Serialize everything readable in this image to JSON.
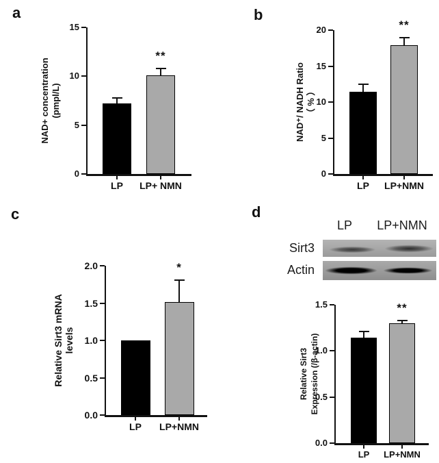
{
  "panel_labels": [
    "a",
    "b",
    "c",
    "d"
  ],
  "colors": {
    "bar_black": "#000000",
    "bar_gray": "#a9a9a9",
    "axis": "#111111"
  },
  "blot": {
    "columns": [
      "LP",
      "LP+NMN"
    ],
    "rows": [
      "Sirt3",
      "Actin"
    ]
  },
  "chart_data": [
    {
      "panel": "a",
      "type": "bar",
      "categories": [
        "LP",
        "LP+ NMN"
      ],
      "values": [
        7.2,
        10.1
      ],
      "errors": [
        0.55,
        0.7
      ],
      "significance": {
        "category": "LP+ NMN",
        "stars": "**"
      },
      "ylabel_lines": [
        "NAD+ concentration",
        "(pmpl/L)"
      ],
      "yticks": [
        "0",
        "5",
        "10",
        "15"
      ],
      "ylim": [
        0,
        15
      ],
      "bar_colors": [
        "#000000",
        "#a9a9a9"
      ],
      "grid": false,
      "legend": null
    },
    {
      "panel": "b",
      "type": "bar",
      "categories": [
        "LP",
        "LP+NMN"
      ],
      "values": [
        11.4,
        17.9
      ],
      "errors": [
        1.1,
        1.1
      ],
      "significance": {
        "category": "LP+NMN",
        "stars": "**"
      },
      "ylabel_lines": [
        "NAD⁺/ NADH Ratio",
        "（ % ）"
      ],
      "yticks": [
        "0",
        "5",
        "10",
        "15",
        "20"
      ],
      "ylim": [
        0,
        20
      ],
      "bar_colors": [
        "#000000",
        "#a9a9a9"
      ],
      "grid": false,
      "legend": null
    },
    {
      "panel": "c",
      "type": "bar",
      "categories": [
        "LP",
        "LP+NMN"
      ],
      "values": [
        1.0,
        1.51
      ],
      "errors": [
        0,
        0.3
      ],
      "significance": {
        "category": "LP+NMN",
        "stars": "*"
      },
      "ylabel_lines": [
        "Relative Sirt3 mRNA",
        "levels"
      ],
      "yticks": [
        "0.0",
        "0.5",
        "1.0",
        "1.5",
        "2.0"
      ],
      "ylim": [
        0,
        2.0
      ],
      "bar_colors": [
        "#000000",
        "#a9a9a9"
      ],
      "grid": false,
      "legend": null
    },
    {
      "panel": "d",
      "type": "bar",
      "categories": [
        "LP",
        "LP+NMN"
      ],
      "values": [
        1.14,
        1.3
      ],
      "errors": [
        0.07,
        0.03
      ],
      "significance": {
        "category": "LP+NMN",
        "stars": "**"
      },
      "ylabel_lines": [
        "Relative Sirt3",
        "Expression (/β-actin)"
      ],
      "yticks": [
        "0.0",
        "0.5",
        "1.0",
        "1.5"
      ],
      "ylim": [
        0,
        1.5
      ],
      "bar_colors": [
        "#000000",
        "#a9a9a9"
      ],
      "grid": false,
      "legend": null
    }
  ]
}
